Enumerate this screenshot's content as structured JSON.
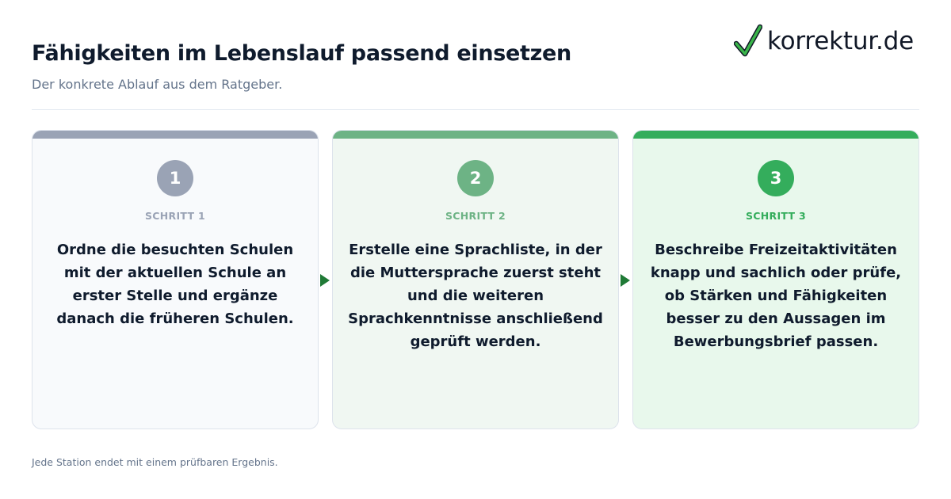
{
  "header": {
    "title": "Fähigkeiten im Lebenslauf passend einsetzen",
    "subtitle": "Der konkrete Ablauf aus dem Ratgeber."
  },
  "logo": {
    "text": "korrektur.de",
    "icon": "checkmark-icon",
    "check_color": "#3ab54a"
  },
  "steps": [
    {
      "number": "1",
      "label": "SCHRITT 1",
      "text": "Ordne die besuchten Schulen mit der aktuellen Schule an erster Stelle und ergänze danach die früheren Schulen.",
      "accent": "#9aa3b5",
      "background": "#f8fafc"
    },
    {
      "number": "2",
      "label": "SCHRITT 2",
      "text": "Erstelle eine Sprachliste, in der die Muttersprache zuerst steht und die weiteren Sprachkenntnisse anschließend geprüft werden.",
      "accent": "#6db385",
      "background": "#f0f7f2"
    },
    {
      "number": "3",
      "label": "SCHRITT 3",
      "text": "Beschreibe Freizeitaktivitäten knapp und sachlich oder prüfe, ob Stärken und Fähigkeiten besser zu den Aussagen im Bewerbungsbrief passen.",
      "accent": "#34ad5c",
      "background": "#e8f8ec"
    }
  ],
  "arrow_color": "#1f7a36",
  "footnote": "Jede Station endet mit einem prüfbaren Ergebnis."
}
